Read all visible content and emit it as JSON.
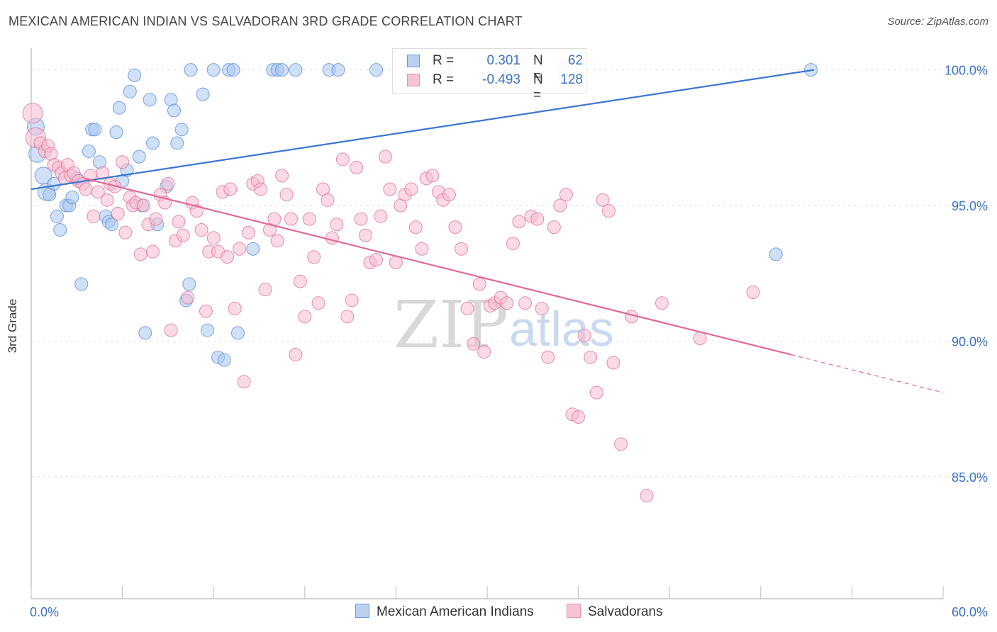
{
  "title": "MEXICAN AMERICAN INDIAN VS SALVADORAN 3RD GRADE CORRELATION CHART",
  "source": "Source: ZipAtlas.com",
  "watermark": {
    "zip": "ZIP",
    "atlas": "atlas"
  },
  "legend": {
    "r_label": "R =",
    "n_label": "N =",
    "series": [
      {
        "r": "0.301",
        "n": "62",
        "color": "#6b9bd8",
        "fill": "#b9d0f0"
      },
      {
        "r": "-0.493",
        "n": "128",
        "color": "#e890ad",
        "fill": "#f6c3d3"
      }
    ]
  },
  "chart_data": {
    "type": "scatter",
    "title": "MEXICAN AMERICAN INDIAN VS SALVADORAN 3RD GRADE CORRELATION CHART",
    "xlabel": "",
    "ylabel": "3rd Grade",
    "xlim": [
      0,
      60
    ],
    "ylim": [
      80.5,
      100.8
    ],
    "x_tick_labels": [
      "0.0%",
      "60.0%"
    ],
    "y_ticks": [
      100,
      95,
      90,
      85
    ],
    "y_tick_labels": [
      "100.0%",
      "95.0%",
      "90.0%",
      "85.0%"
    ],
    "grid": "horizontal dashed",
    "legend_position": "top-center",
    "series": [
      {
        "name": "Mexican American Indians",
        "color": "#5b8fd6",
        "fill": "#a9c6ee",
        "r": 0.301,
        "n": 62,
        "trend": {
          "x": [
            0,
            51.5
          ],
          "y": [
            95.6,
            100.0
          ]
        },
        "points": [
          [
            0.3,
            97.9
          ],
          [
            0.4,
            96.9
          ],
          [
            0.8,
            96.1
          ],
          [
            1.0,
            95.5
          ],
          [
            1.2,
            95.4
          ],
          [
            1.5,
            95.8
          ],
          [
            1.7,
            94.6
          ],
          [
            1.9,
            94.1
          ],
          [
            2.3,
            95.0
          ],
          [
            2.5,
            95.0
          ],
          [
            2.7,
            95.3
          ],
          [
            3.0,
            96.0
          ],
          [
            3.3,
            92.1
          ],
          [
            3.8,
            97.0
          ],
          [
            4.0,
            97.8
          ],
          [
            4.2,
            97.8
          ],
          [
            4.5,
            96.6
          ],
          [
            4.9,
            94.6
          ],
          [
            5.1,
            94.4
          ],
          [
            5.3,
            94.3
          ],
          [
            5.6,
            97.7
          ],
          [
            5.8,
            98.6
          ],
          [
            6.0,
            95.9
          ],
          [
            6.3,
            96.3
          ],
          [
            6.5,
            99.2
          ],
          [
            6.8,
            99.8
          ],
          [
            7.1,
            96.8
          ],
          [
            7.3,
            95.0
          ],
          [
            7.5,
            90.3
          ],
          [
            7.8,
            98.9
          ],
          [
            8.0,
            97.3
          ],
          [
            8.3,
            94.3
          ],
          [
            8.9,
            95.7
          ],
          [
            9.2,
            98.9
          ],
          [
            9.4,
            98.5
          ],
          [
            9.6,
            97.3
          ],
          [
            9.9,
            97.8
          ],
          [
            10.2,
            91.5
          ],
          [
            10.4,
            92.1
          ],
          [
            10.5,
            100.0
          ],
          [
            11.3,
            99.1
          ],
          [
            11.6,
            90.4
          ],
          [
            12.0,
            100.0
          ],
          [
            12.3,
            89.4
          ],
          [
            12.7,
            89.3
          ],
          [
            13.0,
            100.0
          ],
          [
            13.3,
            100.0
          ],
          [
            13.6,
            90.3
          ],
          [
            14.6,
            93.4
          ],
          [
            15.9,
            100.0
          ],
          [
            16.2,
            100.0
          ],
          [
            16.5,
            100.0
          ],
          [
            17.4,
            100.0
          ],
          [
            19.6,
            100.0
          ],
          [
            20.2,
            100.0
          ],
          [
            22.7,
            100.0
          ],
          [
            25.3,
            100.0
          ],
          [
            27.3,
            100.0
          ],
          [
            31.6,
            100.0
          ],
          [
            35.0,
            100.0
          ],
          [
            49.0,
            93.2
          ],
          [
            51.3,
            100.0
          ]
        ]
      },
      {
        "name": "Salvadorans",
        "color": "#e0709a",
        "fill": "#f6bcd0",
        "r": -0.493,
        "n": 128,
        "trend": {
          "x": [
            3.5,
            50
          ],
          "y": [
            96.0,
            89.5
          ]
        },
        "points": [
          [
            0.1,
            98.4
          ],
          [
            0.3,
            97.5
          ],
          [
            0.6,
            97.3
          ],
          [
            0.9,
            97.0
          ],
          [
            1.1,
            97.2
          ],
          [
            1.3,
            96.9
          ],
          [
            1.5,
            96.5
          ],
          [
            1.8,
            96.4
          ],
          [
            2.0,
            96.2
          ],
          [
            2.2,
            96.0
          ],
          [
            2.4,
            96.5
          ],
          [
            2.6,
            96.1
          ],
          [
            2.8,
            96.2
          ],
          [
            3.1,
            95.9
          ],
          [
            3.4,
            95.8
          ],
          [
            3.6,
            95.6
          ],
          [
            3.9,
            96.1
          ],
          [
            4.1,
            94.6
          ],
          [
            4.4,
            95.5
          ],
          [
            4.7,
            96.2
          ],
          [
            5.0,
            95.2
          ],
          [
            5.2,
            95.8
          ],
          [
            5.5,
            95.7
          ],
          [
            5.7,
            94.7
          ],
          [
            6.0,
            96.6
          ],
          [
            6.2,
            94.0
          ],
          [
            6.5,
            95.3
          ],
          [
            6.7,
            95.0
          ],
          [
            6.9,
            95.1
          ],
          [
            7.2,
            93.2
          ],
          [
            7.4,
            95.0
          ],
          [
            7.7,
            94.3
          ],
          [
            8.0,
            93.3
          ],
          [
            8.2,
            94.5
          ],
          [
            8.5,
            95.4
          ],
          [
            8.8,
            95.1
          ],
          [
            9.0,
            95.8
          ],
          [
            9.2,
            90.4
          ],
          [
            9.5,
            93.7
          ],
          [
            9.7,
            94.4
          ],
          [
            10.0,
            93.9
          ],
          [
            10.3,
            91.6
          ],
          [
            10.6,
            95.1
          ],
          [
            10.9,
            94.8
          ],
          [
            11.2,
            94.1
          ],
          [
            11.5,
            91.1
          ],
          [
            11.7,
            93.3
          ],
          [
            12.0,
            93.8
          ],
          [
            12.3,
            93.3
          ],
          [
            12.6,
            95.5
          ],
          [
            12.9,
            93.1
          ],
          [
            13.1,
            95.6
          ],
          [
            13.4,
            91.2
          ],
          [
            13.7,
            93.4
          ],
          [
            14.0,
            88.5
          ],
          [
            14.3,
            94.0
          ],
          [
            14.6,
            95.8
          ],
          [
            14.9,
            95.9
          ],
          [
            15.1,
            95.6
          ],
          [
            15.4,
            91.9
          ],
          [
            15.7,
            94.1
          ],
          [
            16.0,
            94.5
          ],
          [
            16.2,
            93.7
          ],
          [
            16.5,
            96.1
          ],
          [
            16.8,
            95.4
          ],
          [
            17.1,
            94.5
          ],
          [
            17.4,
            89.5
          ],
          [
            17.7,
            92.2
          ],
          [
            18.0,
            90.9
          ],
          [
            18.3,
            94.5
          ],
          [
            18.6,
            93.1
          ],
          [
            18.9,
            91.4
          ],
          [
            19.2,
            95.6
          ],
          [
            19.5,
            95.2
          ],
          [
            19.8,
            93.8
          ],
          [
            20.1,
            94.3
          ],
          [
            20.5,
            96.7
          ],
          [
            20.8,
            90.9
          ],
          [
            21.1,
            91.5
          ],
          [
            21.4,
            96.4
          ],
          [
            21.7,
            94.5
          ],
          [
            22.0,
            93.9
          ],
          [
            22.3,
            92.9
          ],
          [
            22.7,
            93.0
          ],
          [
            23.0,
            94.6
          ],
          [
            23.3,
            96.8
          ],
          [
            23.6,
            95.6
          ],
          [
            24.0,
            92.9
          ],
          [
            24.3,
            95.0
          ],
          [
            24.6,
            95.4
          ],
          [
            25.0,
            95.6
          ],
          [
            25.3,
            94.2
          ],
          [
            25.7,
            93.4
          ],
          [
            26.0,
            96.0
          ],
          [
            26.4,
            96.1
          ],
          [
            26.8,
            95.5
          ],
          [
            27.1,
            95.2
          ],
          [
            27.5,
            95.4
          ],
          [
            27.9,
            94.2
          ],
          [
            28.3,
            93.4
          ],
          [
            28.7,
            91.2
          ],
          [
            29.1,
            89.9
          ],
          [
            29.5,
            92.1
          ],
          [
            29.8,
            89.6
          ],
          [
            30.2,
            91.3
          ],
          [
            30.5,
            91.4
          ],
          [
            30.9,
            91.6
          ],
          [
            31.3,
            91.4
          ],
          [
            31.7,
            93.6
          ],
          [
            32.1,
            94.4
          ],
          [
            32.5,
            91.4
          ],
          [
            32.9,
            94.6
          ],
          [
            33.3,
            94.5
          ],
          [
            33.6,
            91.2
          ],
          [
            34.0,
            89.4
          ],
          [
            34.4,
            94.2
          ],
          [
            34.8,
            95.0
          ],
          [
            35.2,
            95.4
          ],
          [
            35.6,
            87.3
          ],
          [
            36.0,
            87.2
          ],
          [
            36.4,
            90.2
          ],
          [
            36.8,
            89.4
          ],
          [
            37.2,
            88.1
          ],
          [
            37.6,
            95.2
          ],
          [
            38.0,
            94.8
          ],
          [
            38.3,
            89.2
          ],
          [
            38.8,
            86.2
          ],
          [
            39.5,
            90.9
          ],
          [
            40.5,
            84.3
          ],
          [
            41.5,
            91.4
          ],
          [
            44.0,
            90.1
          ],
          [
            47.5,
            91.8
          ]
        ]
      }
    ]
  }
}
